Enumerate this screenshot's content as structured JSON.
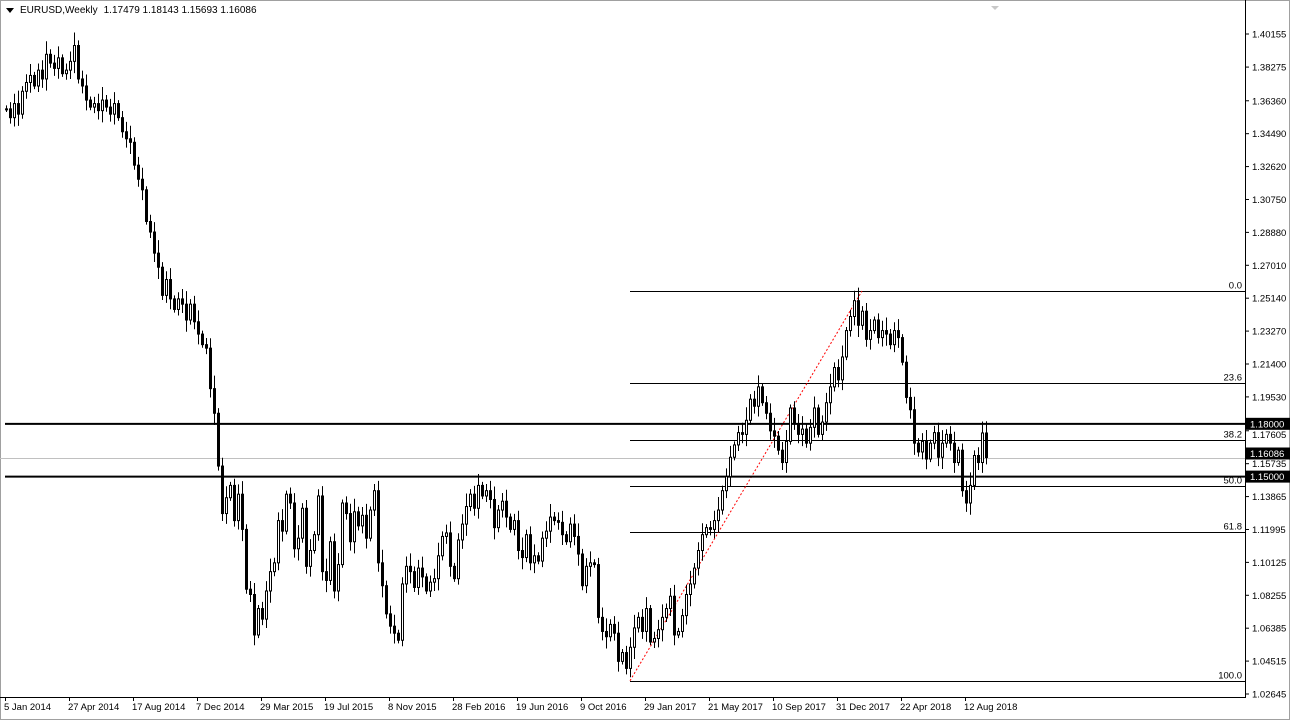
{
  "header": {
    "symbol_timeframe": "EURUSD,Weekly",
    "ohlc_text": "1.17479 1.18143 1.15693 1.16086"
  },
  "chart_data": {
    "type": "candlestick",
    "symbol": "EURUSD",
    "timeframe": "Weekly",
    "start_date": "2014-01-05",
    "last_bar": {
      "open": 1.17479,
      "high": 1.18143,
      "low": 1.15693,
      "close": 1.16086
    },
    "closes": [
      1.359,
      1.354,
      1.362,
      1.356,
      1.369,
      1.374,
      1.378,
      1.372,
      1.381,
      1.376,
      1.39,
      1.385,
      1.382,
      1.388,
      1.379,
      1.381,
      1.386,
      1.395,
      1.376,
      1.372,
      1.364,
      1.36,
      1.362,
      1.358,
      1.364,
      1.36,
      1.356,
      1.362,
      1.354,
      1.346,
      1.342,
      1.34,
      1.327,
      1.319,
      1.313,
      1.295,
      1.289,
      1.277,
      1.269,
      1.253,
      1.262,
      1.251,
      1.245,
      1.251,
      1.248,
      1.239,
      1.248,
      1.238,
      1.231,
      1.225,
      1.223,
      1.2,
      1.186,
      1.156,
      1.129,
      1.138,
      1.145,
      1.125,
      1.14,
      1.12,
      1.086,
      1.083,
      1.06,
      1.075,
      1.069,
      1.085,
      1.096,
      1.101,
      1.125,
      1.119,
      1.14,
      1.135,
      1.109,
      1.115,
      1.132,
      1.099,
      1.108,
      1.117,
      1.139,
      1.096,
      1.091,
      1.113,
      1.085,
      1.1,
      1.135,
      1.129,
      1.113,
      1.13,
      1.122,
      1.128,
      1.115,
      1.131,
      1.142,
      1.101,
      1.088,
      1.072,
      1.065,
      1.061,
      1.057,
      1.089,
      1.099,
      1.096,
      1.087,
      1.098,
      1.093,
      1.085,
      1.09,
      1.092,
      1.105,
      1.116,
      1.118,
      1.099,
      1.092,
      1.114,
      1.123,
      1.133,
      1.14,
      1.132,
      1.145,
      1.139,
      1.142,
      1.137,
      1.121,
      1.131,
      1.136,
      1.127,
      1.12,
      1.125,
      1.108,
      1.104,
      1.117,
      1.101,
      1.105,
      1.102,
      1.115,
      1.119,
      1.127,
      1.125,
      1.124,
      1.117,
      1.113,
      1.123,
      1.116,
      1.106,
      1.088,
      1.099,
      1.101,
      1.1,
      1.07,
      1.062,
      1.059,
      1.066,
      1.061,
      1.045,
      1.05,
      1.041,
      1.053,
      1.064,
      1.07,
      1.062,
      1.075,
      1.056,
      1.058,
      1.063,
      1.07,
      1.075,
      1.082,
      1.06,
      1.062,
      1.071,
      1.083,
      1.089,
      1.098,
      1.108,
      1.117,
      1.121,
      1.12,
      1.125,
      1.131,
      1.142,
      1.15,
      1.161,
      1.168,
      1.175,
      1.174,
      1.182,
      1.194,
      1.19,
      1.201,
      1.192,
      1.186,
      1.176,
      1.173,
      1.165,
      1.158,
      1.17,
      1.189,
      1.18,
      1.174,
      1.177,
      1.169,
      1.178,
      1.189,
      1.174,
      1.181,
      1.192,
      1.201,
      1.212,
      1.205,
      1.218,
      1.233,
      1.241,
      1.25,
      1.236,
      1.244,
      1.228,
      1.233,
      1.239,
      1.229,
      1.233,
      1.231,
      1.225,
      1.233,
      1.229,
      1.215,
      1.195,
      1.188,
      1.169,
      1.164,
      1.17,
      1.16,
      1.169,
      1.175,
      1.161,
      1.169,
      1.174,
      1.169,
      1.158,
      1.165,
      1.142,
      1.135,
      1.145,
      1.162,
      1.158,
      1.1748,
      1.16086
    ],
    "ylim": [
      1.02645,
      1.40155
    ],
    "y_ticks": [
      "1.40155",
      "1.38275",
      "1.36360",
      "1.34490",
      "1.32620",
      "1.30750",
      "1.28880",
      "1.27010",
      "1.25140",
      "1.23270",
      "1.21400",
      "1.19530",
      "1.17605",
      "1.15735",
      "1.13865",
      "1.11995",
      "1.10125",
      "1.08255",
      "1.06385",
      "1.04515",
      "1.02645"
    ],
    "x_ticks": [
      "5 Jan 2014",
      "27 Apr 2014",
      "17 Aug 2014",
      "7 Dec 2014",
      "29 Mar 2015",
      "19 Jul 2015",
      "8 Nov 2015",
      "28 Feb 2016",
      "19 Jun 2016",
      "9 Oct 2016",
      "29 Jan 2017",
      "21 May 2017",
      "10 Sep 2017",
      "31 Dec 2017",
      "22 Apr 2018",
      "12 Aug 2018"
    ],
    "horizontal_lines": [
      {
        "price": 1.18,
        "label": "1.18000"
      },
      {
        "price": 1.15,
        "label": "1.15000"
      }
    ],
    "current_price": {
      "price": 1.16086,
      "label": "1.16086"
    },
    "fibonacci": {
      "from": {
        "date": "2017-01-01",
        "price": 1.034
      },
      "to": {
        "date": "2018-02-11",
        "price": 1.2555
      },
      "levels": [
        {
          "label": "0.0",
          "price": 1.2555
        },
        {
          "label": "23.6",
          "price": 1.2032
        },
        {
          "label": "38.2",
          "price": 1.1708
        },
        {
          "label": "50.0",
          "price": 1.1447
        },
        {
          "label": "61.8",
          "price": 1.1186
        },
        {
          "label": "100.0",
          "price": 1.034
        }
      ],
      "trendline_color": "#ff0000"
    },
    "colors": {
      "bull_body": "#ffffff",
      "bear_body": "#000000",
      "outline": "#000000",
      "grid": "none"
    }
  }
}
